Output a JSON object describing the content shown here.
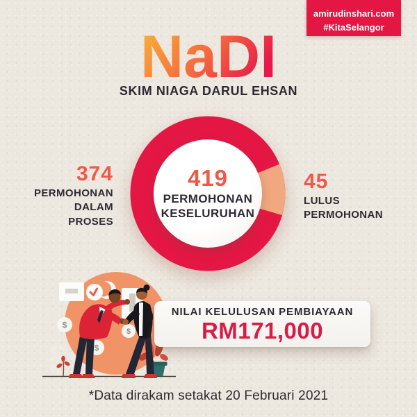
{
  "badge": {
    "line1": "amirudinshari.com",
    "line2": "#KitaSelangor"
  },
  "header": {
    "logo_text": "NaDI",
    "subtitle": "SKIM NIAGA DARUL EHSAN"
  },
  "chart_data": {
    "type": "pie",
    "style": "donut",
    "title": "NaDI Skim Niaga Darul Ehsan - Status Permohonan",
    "total": 419,
    "center": {
      "value": "419",
      "lines": [
        "PERMOHONAN",
        "KESELURUHAN"
      ]
    },
    "segments": [
      {
        "name": "PERMOHONAN DALAM PROSES",
        "label_lines": [
          "PERMOHONAN",
          "DALAM",
          "PROSES"
        ],
        "value": 374,
        "color": "#e41744"
      },
      {
        "name": "LULUS PERMOHONAN",
        "label_lines": [
          "LULUS",
          "PERMOHONAN"
        ],
        "value": 45,
        "color": "#f2a87f"
      }
    ],
    "legend_position": "sides",
    "start_angle_deg": -22.4
  },
  "approval_card": {
    "label": "NILAI KELULUSAN PEMBIAYAAN",
    "value": "RM171,000"
  },
  "footer": {
    "note": "*Data dirakam setakat 20 Februari 2021"
  },
  "illustration": {
    "coin_symbol": "$"
  },
  "colors": {
    "accent_red": "#e41744",
    "coral": "#ee594a",
    "peach": "#f2a87f",
    "dark": "#2d2a32",
    "value_red": "#d81c45",
    "background": "#ece7df",
    "logo_gradient": [
      "#f9a63a",
      "#f3693e",
      "#e7194a"
    ]
  }
}
